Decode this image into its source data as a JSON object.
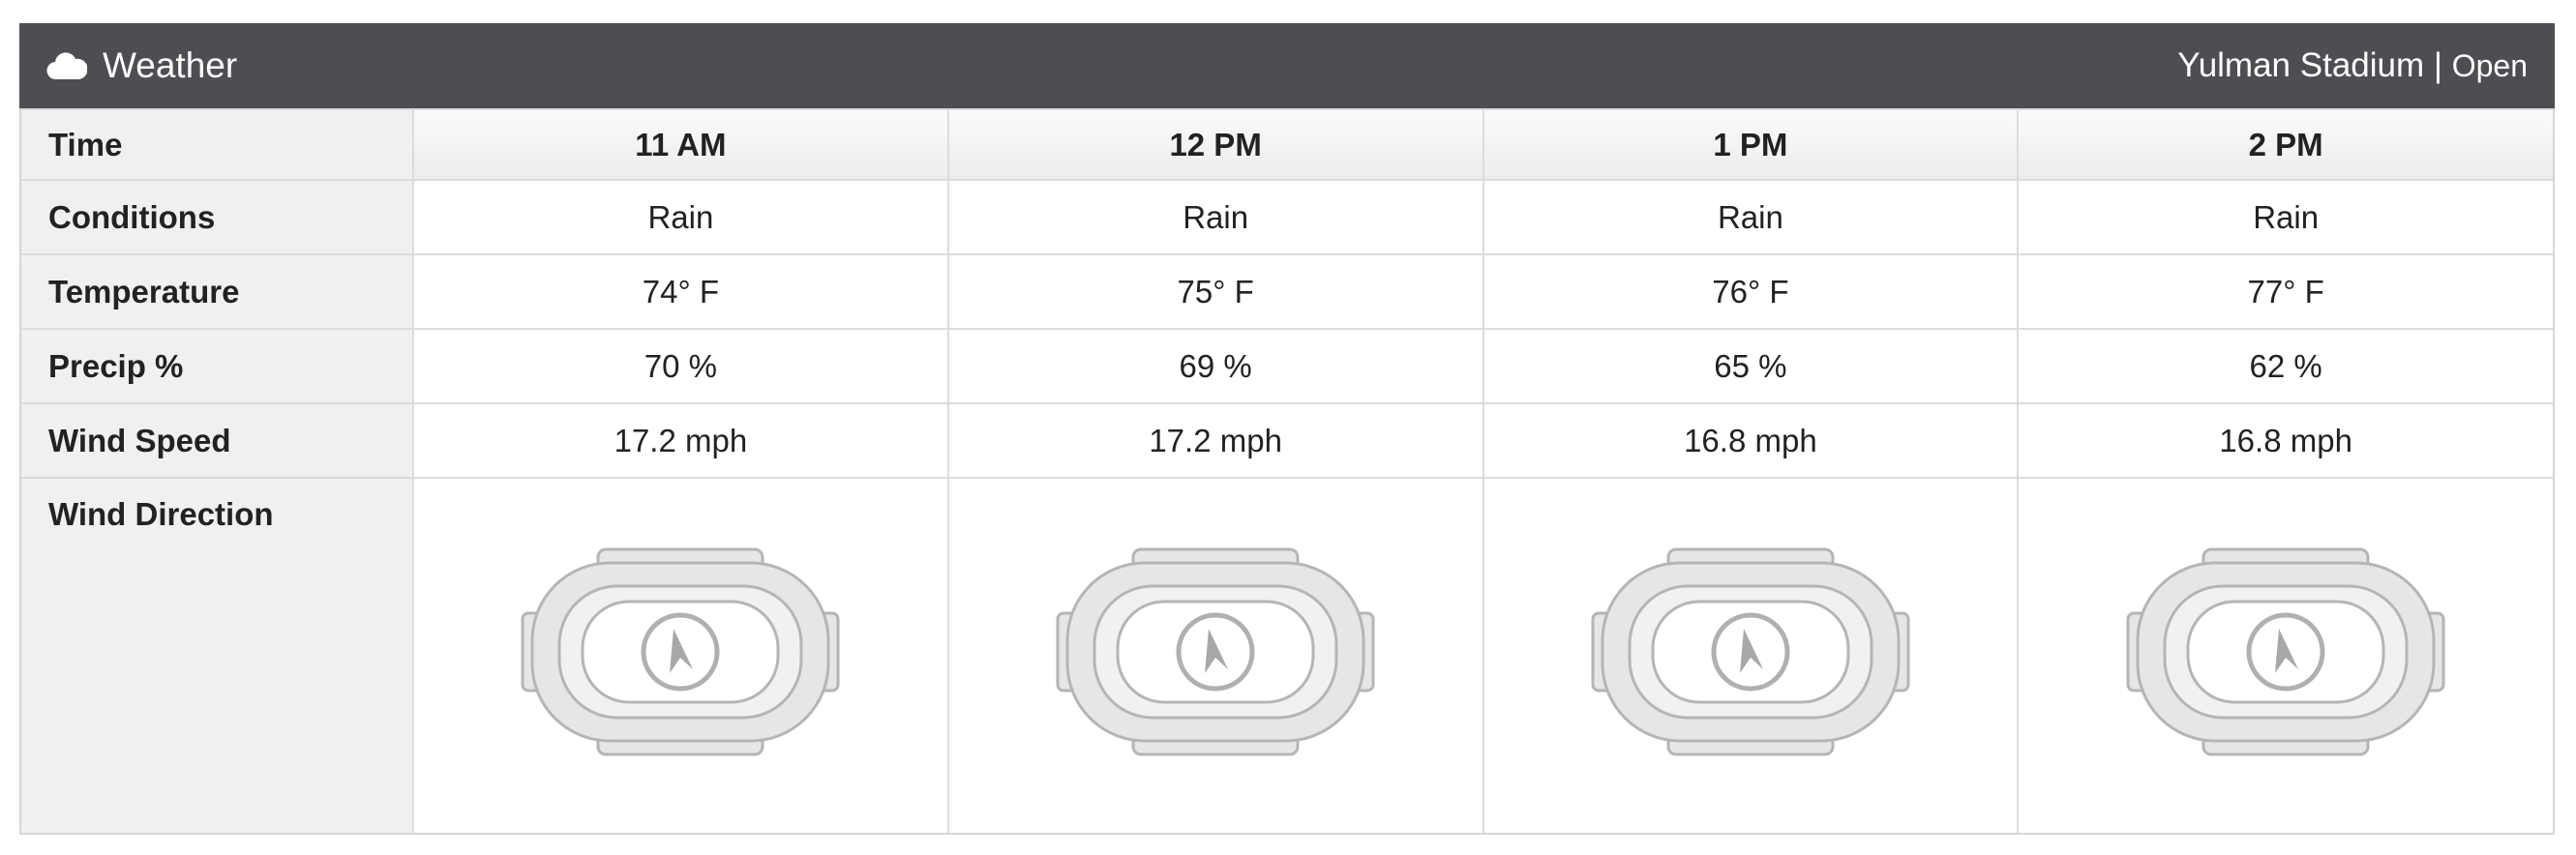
{
  "header": {
    "title": "Weather",
    "location": "Yulman Stadium",
    "separator": "|",
    "status": "Open"
  },
  "table": {
    "columns": [
      "Time",
      "11 AM",
      "12 PM",
      "1 PM",
      "2 PM"
    ],
    "rows": [
      [
        "Conditions",
        "Rain",
        "Rain",
        "Rain",
        "Rain"
      ],
      [
        "Temperature",
        "74° F",
        "75° F",
        "76° F",
        "77° F"
      ],
      [
        "Precip %",
        "70 %",
        "69 %",
        "65 %",
        "62 %"
      ],
      [
        "Wind Speed",
        "17.2 mph",
        "17.2 mph",
        "16.8 mph",
        "16.8 mph"
      ],
      [
        "Wind Direction"
      ]
    ]
  }
}
